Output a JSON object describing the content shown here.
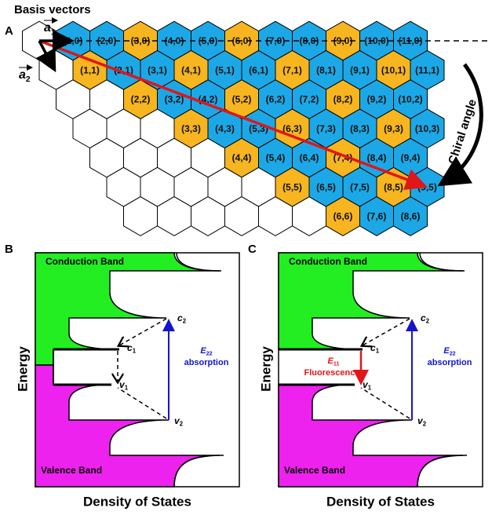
{
  "panel_a": {
    "label": "A",
    "basis_title": "Basis vectors",
    "a1": {
      "letter": "a",
      "sub": "1"
    },
    "a2": {
      "letter": "a",
      "sub": "2"
    },
    "chiral_angle": "Chiral angle",
    "rows": [
      {
        "hexagons": [
          {
            "label": "(1,0)",
            "color": "#1ca8e6"
          },
          {
            "label": "(2,0)",
            "color": "#1ca8e6"
          },
          {
            "label": "(3,0)",
            "color": "#f7b51f"
          },
          {
            "label": "(4,0)",
            "color": "#1ca8e6"
          },
          {
            "label": "(5,0)",
            "color": "#1ca8e6"
          },
          {
            "label": "(6,0)",
            "color": "#f7b51f"
          },
          {
            "label": "(7,0)",
            "color": "#1ca8e6"
          },
          {
            "label": "(8,0)",
            "color": "#1ca8e6"
          },
          {
            "label": "(9,0)",
            "color": "#f7b51f"
          },
          {
            "label": "(10,0)",
            "color": "#1ca8e6"
          },
          {
            "label": "(11,0)",
            "color": "#1ca8e6"
          }
        ]
      },
      {
        "hexagons": [
          {
            "label": "(1,1)",
            "color": "#f7b51f"
          },
          {
            "label": "(2,1)",
            "color": "#1ca8e6"
          },
          {
            "label": "(3,1)",
            "color": "#1ca8e6"
          },
          {
            "label": "(4,1)",
            "color": "#f7b51f"
          },
          {
            "label": "(5,1)",
            "color": "#1ca8e6"
          },
          {
            "label": "(6,1)",
            "color": "#1ca8e6"
          },
          {
            "label": "(7,1)",
            "color": "#f7b51f"
          },
          {
            "label": "(8,1)",
            "color": "#1ca8e6"
          },
          {
            "label": "(9,1)",
            "color": "#1ca8e6"
          },
          {
            "label": "(10,1)",
            "color": "#f7b51f"
          },
          {
            "label": "(11,1)",
            "color": "#1ca8e6"
          }
        ]
      },
      {
        "hexagons": [
          {
            "label": "(2,2)",
            "color": "#f7b51f"
          },
          {
            "label": "(3,2)",
            "color": "#1ca8e6"
          },
          {
            "label": "(4,2)",
            "color": "#1ca8e6"
          },
          {
            "label": "(5,2)",
            "color": "#f7b51f"
          },
          {
            "label": "(6,2)",
            "color": "#1ca8e6"
          },
          {
            "label": "(7,2)",
            "color": "#1ca8e6"
          },
          {
            "label": "(8,2)",
            "color": "#f7b51f"
          },
          {
            "label": "(9,2)",
            "color": "#1ca8e6"
          },
          {
            "label": "(10,2)",
            "color": "#1ca8e6"
          }
        ]
      },
      {
        "hexagons": [
          {
            "label": "(3,3)",
            "color": "#f7b51f"
          },
          {
            "label": "(4,3)",
            "color": "#1ca8e6"
          },
          {
            "label": "(5,3)",
            "color": "#1ca8e6"
          },
          {
            "label": "(6,3)",
            "color": "#f7b51f"
          },
          {
            "label": "(7,3)",
            "color": "#1ca8e6"
          },
          {
            "label": "(8,3)",
            "color": "#1ca8e6"
          },
          {
            "label": "(9,3)",
            "color": "#f7b51f"
          },
          {
            "label": "(10,3)",
            "color": "#1ca8e6"
          }
        ]
      },
      {
        "hexagons": [
          {
            "label": "(4,4)",
            "color": "#f7b51f"
          },
          {
            "label": "(5,4)",
            "color": "#1ca8e6"
          },
          {
            "label": "(6,4)",
            "color": "#1ca8e6"
          },
          {
            "label": "(7,4)",
            "color": "#f7b51f"
          },
          {
            "label": "(8,4)",
            "color": "#1ca8e6"
          },
          {
            "label": "(9,4)",
            "color": "#1ca8e6"
          }
        ]
      },
      {
        "hexagons": [
          {
            "label": "(5,5)",
            "color": "#f7b51f"
          },
          {
            "label": "(6,5)",
            "color": "#1ca8e6"
          },
          {
            "label": "(7,5)",
            "color": "#1ca8e6"
          },
          {
            "label": "(8,5)",
            "color": "#f7b51f"
          },
          {
            "label": "(9,5)",
            "color": "#1ca8e6"
          }
        ]
      },
      {
        "hexagons": [
          {
            "label": "(6,6)",
            "color": "#f7b51f"
          },
          {
            "label": "(7,6)",
            "color": "#1ca8e6"
          },
          {
            "label": "(8,6)",
            "color": "#1ca8e6"
          }
        ]
      }
    ]
  },
  "panel_b": {
    "label": "B",
    "conduction": "Conduction Band",
    "valence": "Valence Band",
    "y_axis": "Energy",
    "x_axis": "Density of States",
    "c2": {
      "letter": "c",
      "sub": "2"
    },
    "c1": {
      "letter": "c",
      "sub": "1"
    },
    "v1": {
      "letter": "v",
      "sub": "1"
    },
    "v2": {
      "letter": "v",
      "sub": "2"
    },
    "absorption": {
      "letter": "E",
      "sub": "22",
      "caption": "absorption"
    }
  },
  "panel_c": {
    "label": "C",
    "conduction": "Conduction Band",
    "valence": "Valence Band",
    "y_axis": "Energy",
    "x_axis": "Density of States",
    "c2": {
      "letter": "c",
      "sub": "2"
    },
    "c1": {
      "letter": "c",
      "sub": "1"
    },
    "v1": {
      "letter": "v",
      "sub": "1"
    },
    "v2": {
      "letter": "v",
      "sub": "2"
    },
    "absorption": {
      "letter": "E",
      "sub": "22",
      "caption": "absorption"
    },
    "fluorescence": {
      "letter": "E",
      "sub": "11",
      "caption": "Fluorescence"
    }
  }
}
